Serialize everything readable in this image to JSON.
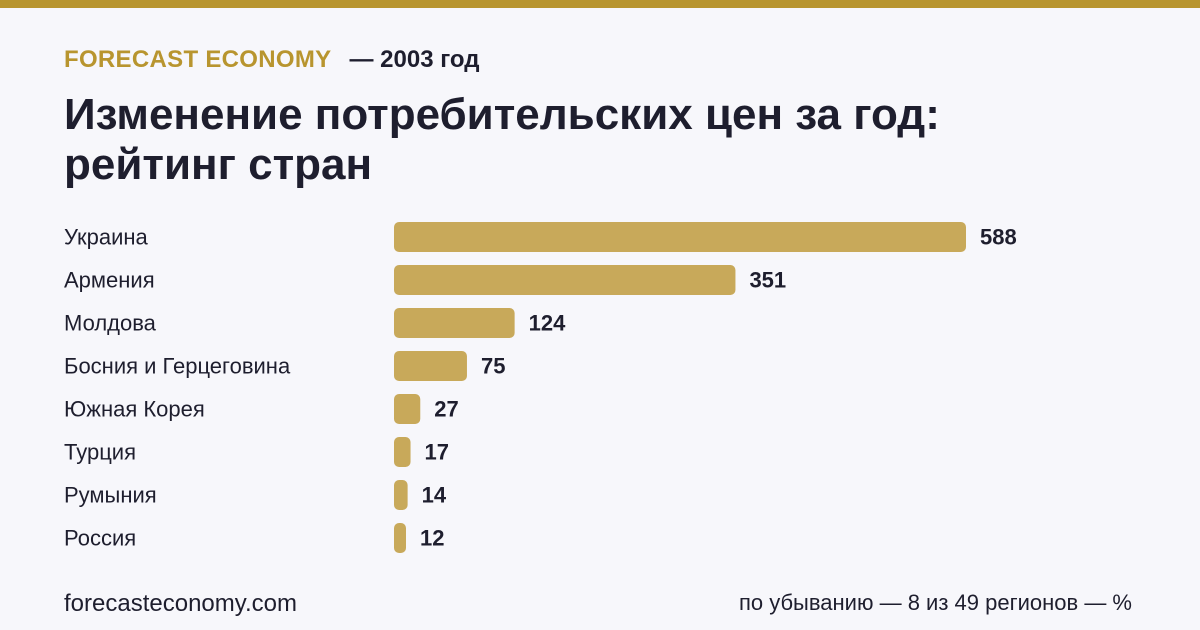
{
  "header": {
    "brand": "FORECAST ECONOMY",
    "year": "— 2003 год"
  },
  "title": "Изменение потребительских цен за год: рейтинг стран",
  "footer": {
    "site": "forecasteconomy.com",
    "note": "по убыванию — 8 из 49 регионов — %"
  },
  "colors": {
    "accent": "#b8952f",
    "bar": "#c8a95a",
    "text": "#1e1e2e",
    "background": "#f7f7fb"
  },
  "chart_data": {
    "type": "bar",
    "orientation": "horizontal",
    "categories": [
      "Украина",
      "Армения",
      "Молдова",
      "Босния и Герцеговина",
      "Южная Корея",
      "Турция",
      "Румыния",
      "Россия"
    ],
    "values": [
      588,
      351,
      124,
      75,
      27,
      17,
      14,
      12
    ],
    "value_labels": [
      "588",
      "351",
      "124",
      "75",
      "27",
      "17",
      "14",
      "12"
    ],
    "unit": "%",
    "grid": false,
    "legend": "none"
  }
}
